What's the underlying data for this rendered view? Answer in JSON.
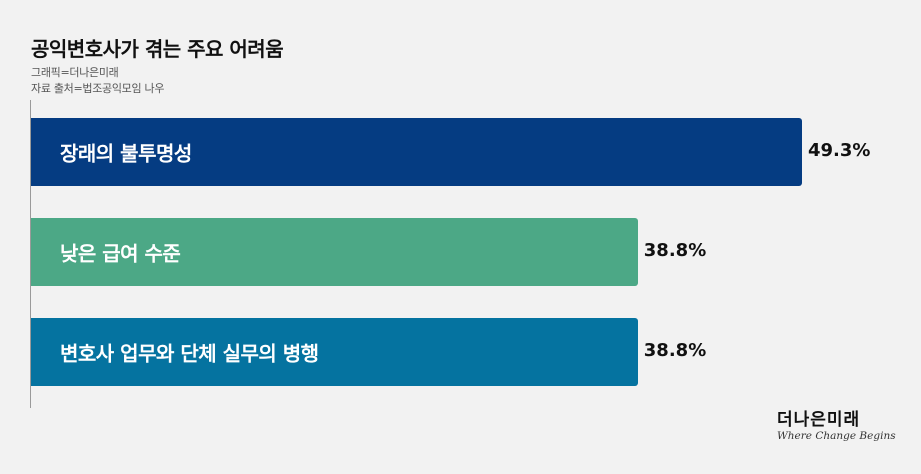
{
  "title": "공익변호사가 겪는 주요 어려움",
  "credit": "그래픽=더나은미래",
  "source": "자료 출처=법조공익모임 나우",
  "brand": {
    "name": "더나은미래",
    "tagline": "Where Change Begins"
  },
  "chart_data": {
    "type": "bar",
    "orientation": "horizontal",
    "title": "공익변호사가 겪는 주요 어려움",
    "unit": "%",
    "categories": [
      "장래의 불투명성",
      "낮은 급여 수준",
      "변호사 업무와 단체 실무의 병행"
    ],
    "values": [
      49.3,
      38.8,
      38.8
    ],
    "value_labels": [
      "49.3%",
      "38.8%",
      "38.8%"
    ],
    "colors": [
      "#053c82",
      "#4ca886",
      "#0573a0"
    ],
    "grid": false,
    "legend": "none"
  }
}
